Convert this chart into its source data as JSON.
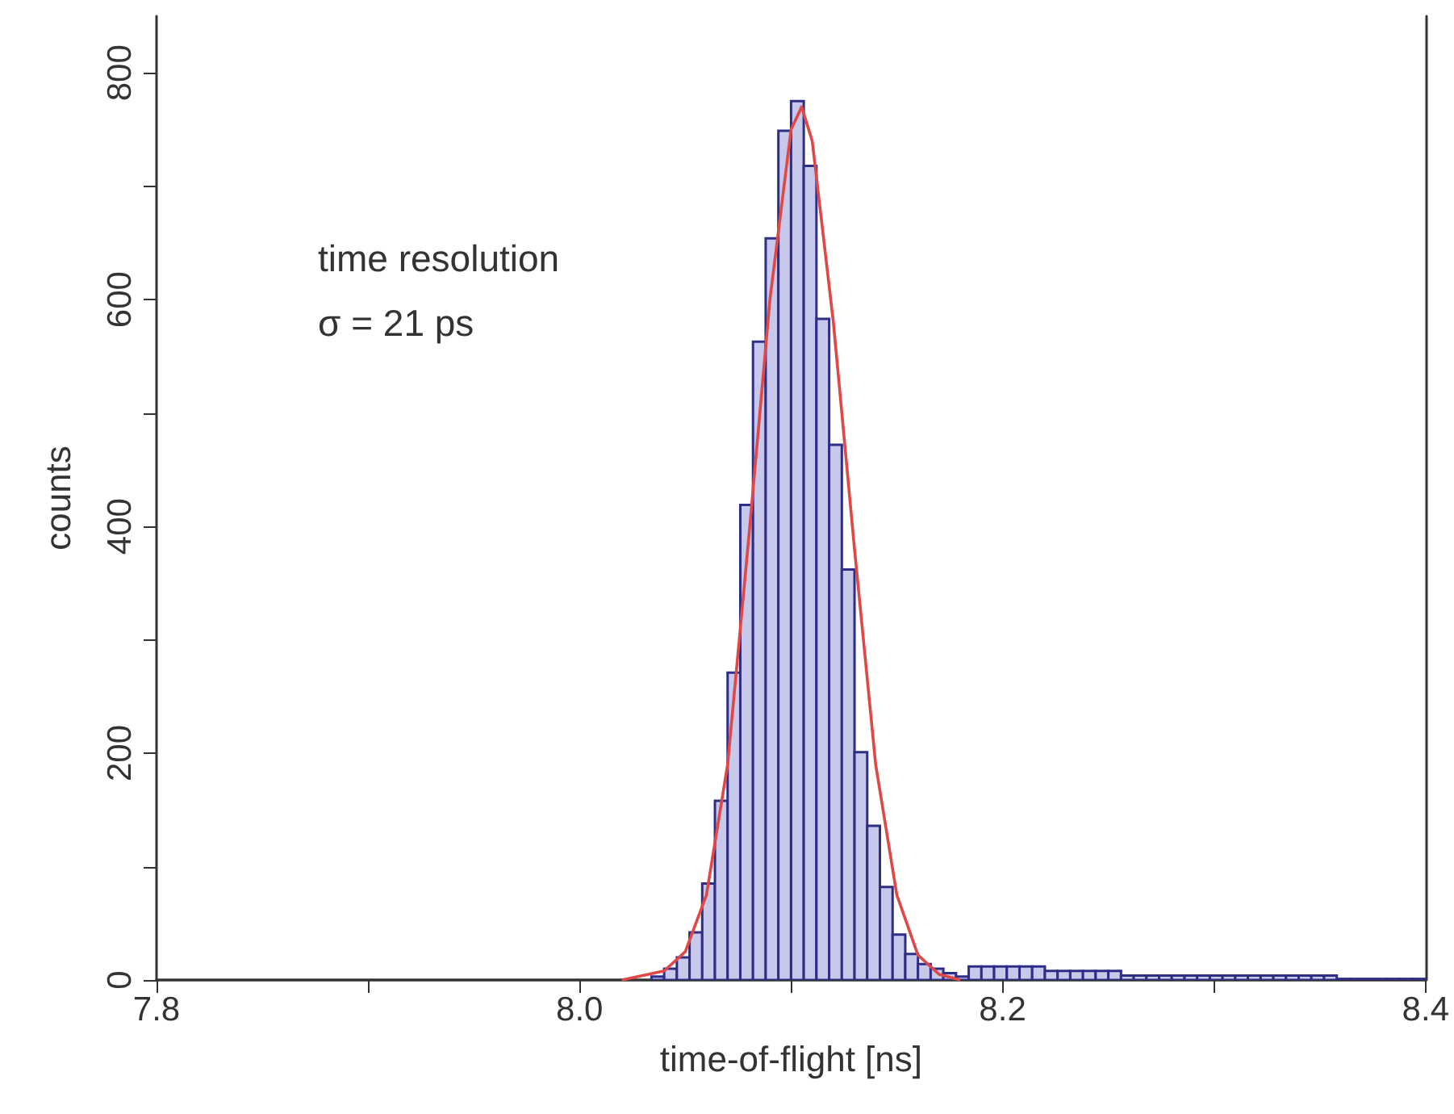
{
  "chart_data": {
    "type": "histogram",
    "xlabel": "time-of-flight [ns]",
    "ylabel": "counts",
    "annotations": [
      "time resolution\nσ = 21 ps"
    ],
    "bins": [
      7.8,
      7.806,
      7.812,
      7.818,
      7.824,
      7.83,
      7.836,
      7.842,
      7.848,
      7.854,
      7.86,
      7.866,
      7.872,
      7.878,
      7.884,
      7.89,
      7.896,
      7.902,
      7.908,
      7.914,
      7.92,
      7.926,
      7.932,
      7.938,
      7.944,
      7.95,
      7.956,
      7.962,
      7.968,
      7.974,
      7.98,
      7.986,
      7.992,
      7.998,
      8.004,
      8.01,
      8.016,
      8.022,
      8.028,
      8.034,
      8.04,
      8.046,
      8.052,
      8.058,
      8.064,
      8.07,
      8.076,
      8.082,
      8.088,
      8.094,
      8.1,
      8.106,
      8.112,
      8.118,
      8.124,
      8.13,
      8.136,
      8.142,
      8.148,
      8.154,
      8.16,
      8.166,
      8.172,
      8.178,
      8.184,
      8.19,
      8.196,
      8.202,
      8.208,
      8.214,
      8.22,
      8.226,
      8.232,
      8.238,
      8.244,
      8.25,
      8.256,
      8.262,
      8.268,
      8.274,
      8.28,
      8.286,
      8.292,
      8.298,
      8.304,
      8.31,
      8.316,
      8.322,
      8.328,
      8.334,
      8.34,
      8.346,
      8.352,
      8.358,
      8.364,
      8.37,
      8.376,
      8.382,
      8.388,
      8.394,
      8.4
    ],
    "series": [
      {
        "color": "#c8c8ec",
        "values": [
          0,
          0,
          0,
          0,
          0,
          0,
          0,
          0,
          0,
          0,
          0,
          0,
          0,
          0,
          0,
          0,
          0,
          0,
          0,
          0,
          0,
          0,
          0,
          0,
          0,
          0,
          0,
          0,
          0,
          0,
          0,
          0,
          0,
          0,
          0,
          0,
          0,
          0,
          0,
          3,
          10,
          20,
          42,
          85,
          158,
          271,
          419,
          563,
          654,
          749,
          775,
          718,
          583,
          472,
          362,
          201,
          136,
          82,
          40,
          23,
          14,
          10,
          6,
          3,
          12,
          12,
          12,
          12,
          12,
          12,
          8,
          8,
          8,
          8,
          8,
          8,
          4,
          4,
          4,
          4,
          4,
          4,
          4,
          4,
          4,
          4,
          4,
          4,
          4,
          4,
          4,
          4,
          4,
          1,
          1,
          1,
          1,
          1,
          1,
          1
        ]
      },
      {
        "type": "line",
        "color": "#e04848",
        "x": [
          8.02,
          8.04,
          8.05,
          8.06,
          8.07,
          8.08,
          8.09,
          8.1,
          8.105,
          8.11,
          8.12,
          8.13,
          8.14,
          8.15,
          8.16,
          8.17,
          8.18
        ],
        "values": [
          0,
          8,
          25,
          75,
          190,
          390,
          600,
          750,
          770,
          740,
          580,
          380,
          190,
          75,
          22,
          5,
          0
        ]
      }
    ],
    "xlim": [
      7.8,
      8.4
    ],
    "xticks": [
      {
        "value": 7.8,
        "label": "7.8"
      },
      {
        "value": 7.9,
        "label": null
      },
      {
        "value": 8,
        "label": "8.0"
      },
      {
        "value": 8.1,
        "label": null
      },
      {
        "value": 8.2,
        "label": "8.2"
      },
      {
        "value": 8.3,
        "label": null
      },
      {
        "value": 8.4,
        "label": "8.4"
      }
    ],
    "ylim": [
      0,
      850
    ],
    "yticks": [
      0,
      {
        "value": 100,
        "label": null
      },
      200,
      {
        "value": 300,
        "label": null
      },
      400,
      {
        "value": 500,
        "label": null
      },
      600,
      {
        "value": 700,
        "label": null
      },
      800
    ],
    "grid": false
  }
}
